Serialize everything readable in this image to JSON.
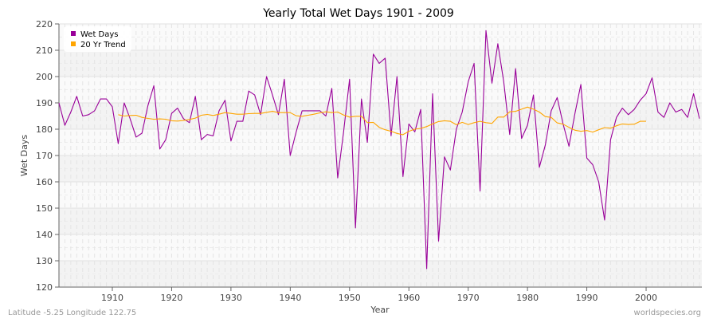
{
  "chart_data": {
    "type": "line",
    "title": "Yearly Total Wet Days 1901 - 2009",
    "xlabel": "Year",
    "ylabel": "Wet Days",
    "xlim": [
      1901,
      2009
    ],
    "ylim": [
      120,
      220
    ],
    "xticks": [
      1910,
      1920,
      1930,
      1940,
      1950,
      1960,
      1970,
      1980,
      1990,
      2000
    ],
    "yticks": [
      120,
      130,
      140,
      150,
      160,
      170,
      180,
      190,
      200,
      210,
      220
    ],
    "grid": true,
    "legend_position": "top-left",
    "colors": {
      "wet_days": "#990099",
      "trend": "#ffa500"
    },
    "series": [
      {
        "name": "Wet Days",
        "start_year": 1901,
        "values": [
          190,
          181.5,
          186.5,
          192.5,
          185,
          185.5,
          187,
          191.5,
          191.5,
          188.5,
          174.5,
          190,
          184,
          177,
          178.5,
          189,
          196.5,
          172.5,
          176,
          186,
          188,
          184,
          182.5,
          192.5,
          176,
          178,
          177.5,
          187,
          191,
          175.5,
          183,
          183,
          194.5,
          193,
          185.5,
          200,
          193,
          185.5,
          199,
          170,
          179,
          187,
          187,
          187,
          187,
          185,
          195.5,
          161.5,
          179,
          199,
          142.5,
          191.5,
          175,
          208.5,
          205,
          207,
          177.5,
          200,
          162,
          182,
          179,
          187.5,
          127,
          193.5,
          137.5,
          169.5,
          164.5,
          180,
          186.5,
          198,
          205,
          156.5,
          217.5,
          197.5,
          212.5,
          198,
          178,
          203,
          176.5,
          181.5,
          193,
          165.5,
          174,
          187,
          192,
          182,
          173.5,
          186,
          197,
          169,
          166.5,
          160,
          145.5,
          176,
          184.5,
          188,
          185.5,
          187.5,
          191,
          193.5,
          199.5,
          186.5,
          184.5,
          190,
          186.5,
          187.5,
          184.5,
          193.5,
          184
        ]
      },
      {
        "name": "20 Yr Trend",
        "start_year": 1911,
        "values": [
          185.5,
          185,
          185.2,
          185.3,
          184.5,
          184.1,
          183.8,
          183.9,
          183.8,
          183.2,
          183.1,
          183.3,
          183.7,
          184.2,
          185.3,
          185.6,
          185.2,
          185.7,
          186.3,
          186,
          185.7,
          185.7,
          185.9,
          186,
          186,
          186.4,
          186.8,
          186.3,
          186.3,
          186.3,
          185.1,
          184.9,
          185.3,
          185.7,
          186.2,
          186.6,
          186.3,
          186.5,
          185.4,
          184.6,
          184.9,
          184.9,
          182.5,
          182.6,
          180.7,
          179.8,
          179.2,
          178.4,
          177.9,
          179.2,
          180,
          180.3,
          181,
          182,
          182.9,
          183.2,
          183,
          181.7,
          182.6,
          181.8,
          182.5,
          183,
          182.5,
          182.2,
          184.6,
          184.6,
          186.6,
          186.8,
          187.6,
          188.4,
          187.6,
          186.5,
          184.8,
          184.5,
          182.4,
          181.9,
          180.7,
          179.6,
          179.2,
          179.5,
          178.9,
          179.8,
          180.6,
          180.4,
          181.3,
          182,
          181.8,
          181.9,
          183,
          183
        ]
      }
    ]
  },
  "footer": {
    "location": "Latitude -5.25 Longitude 122.75",
    "source": "worldspecies.org"
  }
}
